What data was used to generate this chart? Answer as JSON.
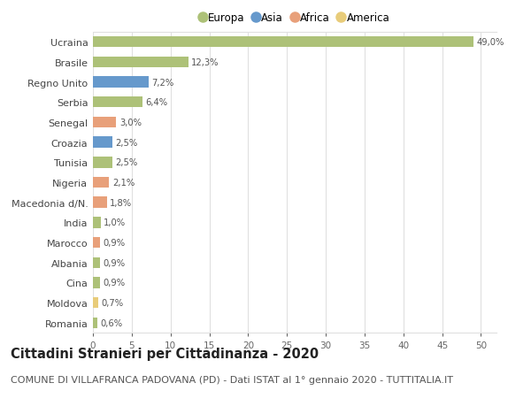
{
  "categories": [
    "Romania",
    "Moldova",
    "Cina",
    "Albania",
    "Marocco",
    "India",
    "Macedonia d/N.",
    "Nigeria",
    "Tunisia",
    "Croazia",
    "Senegal",
    "Serbia",
    "Regno Unito",
    "Brasile",
    "Ucraina"
  ],
  "values": [
    49.0,
    12.3,
    7.2,
    6.4,
    3.0,
    2.5,
    2.5,
    2.1,
    1.8,
    1.0,
    0.9,
    0.9,
    0.9,
    0.7,
    0.6
  ],
  "labels": [
    "49,0%",
    "12,3%",
    "7,2%",
    "6,4%",
    "3,0%",
    "2,5%",
    "2,5%",
    "2,1%",
    "1,8%",
    "1,0%",
    "0,9%",
    "0,9%",
    "0,9%",
    "0,7%",
    "0,6%"
  ],
  "continents": [
    "Europa",
    "Europa",
    "Asia",
    "Europa",
    "Africa",
    "Asia",
    "Europa",
    "Africa",
    "Africa",
    "Europa",
    "Africa",
    "Europa",
    "Europa",
    "America",
    "Europa"
  ],
  "colors": {
    "Europa": "#adc178",
    "Asia": "#6699cc",
    "Africa": "#e8a07a",
    "America": "#e8cc7a"
  },
  "legend_order": [
    "Europa",
    "Asia",
    "Africa",
    "America"
  ],
  "xlim": [
    0,
    52
  ],
  "xticks": [
    0,
    5,
    10,
    15,
    20,
    25,
    30,
    35,
    40,
    45,
    50
  ],
  "background_color": "#ffffff",
  "grid_color": "#e0e0e0",
  "title": "Cittadini Stranieri per Cittadinanza - 2020",
  "subtitle": "COMUNE DI VILLAFRANCA PADOVANA (PD) - Dati ISTAT al 1° gennaio 2020 - TUTTITALIA.IT",
  "title_fontsize": 10.5,
  "subtitle_fontsize": 8,
  "bar_height": 0.55
}
